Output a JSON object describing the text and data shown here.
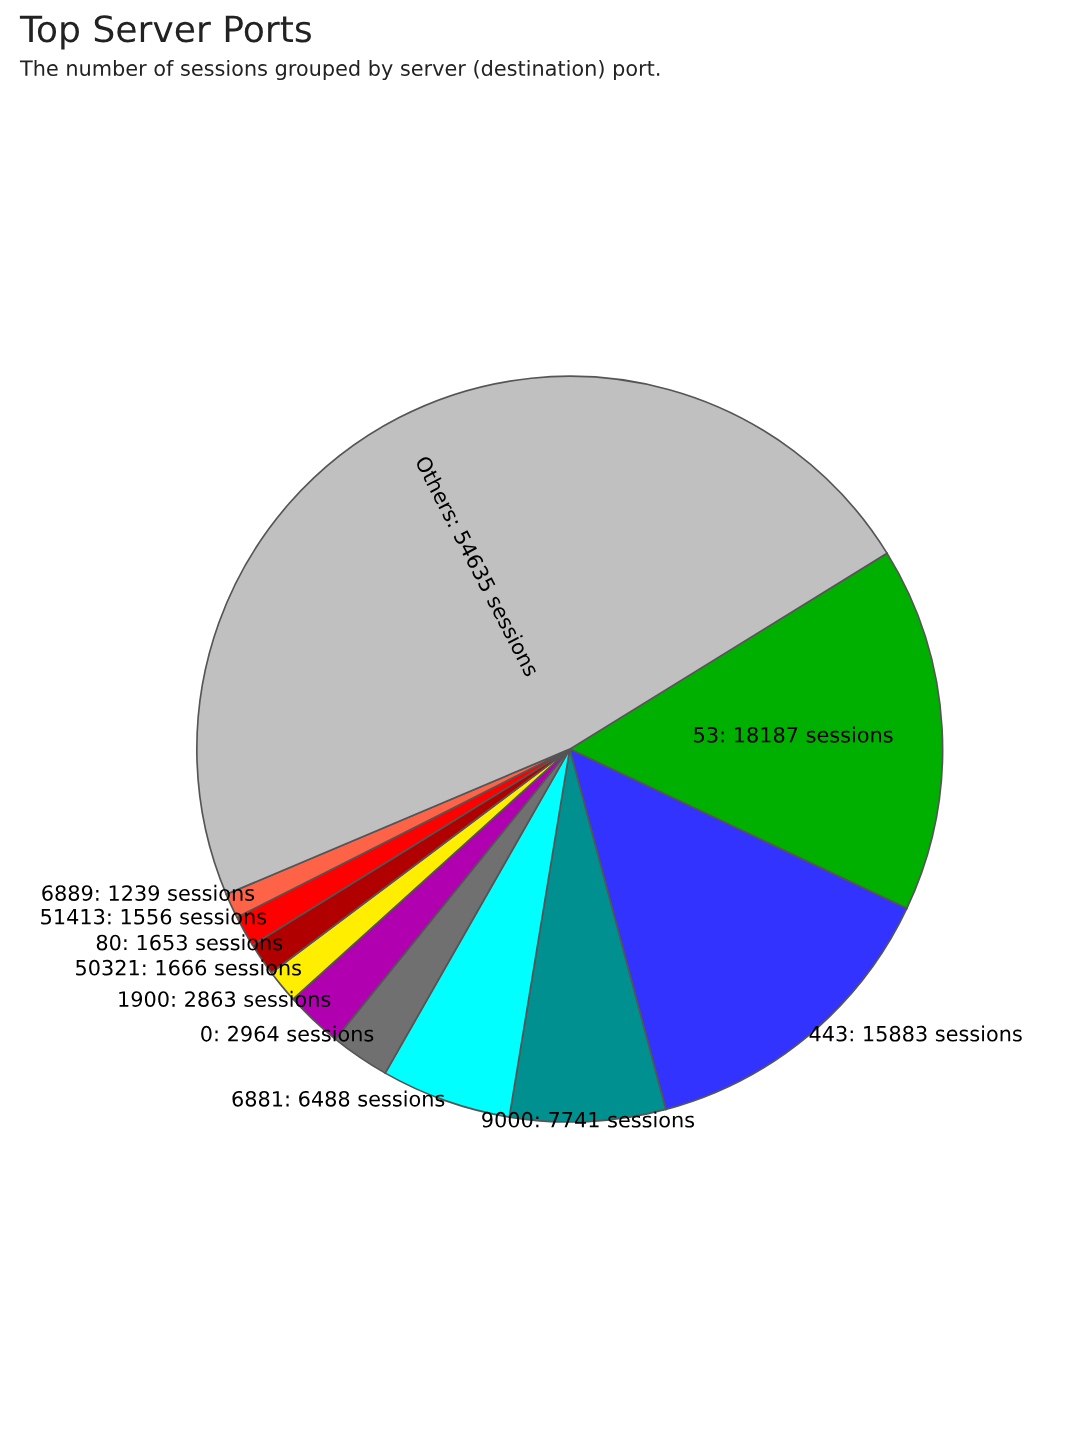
{
  "chart_data": {
    "type": "pie",
    "title": "Top Server Ports",
    "subtitle": "The number of sessions grouped by server (destination) port.",
    "categories": [
      "53: 18187 sessions",
      "443: 15883 sessions",
      "9000: 7741 sessions",
      "6881: 6488 sessions",
      "0: 2964 sessions",
      "1900: 2863 sessions",
      "50321: 1666 sessions",
      "80: 1653 sessions",
      "51413: 1556 sessions",
      "6889: 1239 sessions",
      "Others: 54635 sessions"
    ],
    "values": [
      18187,
      15883,
      7741,
      6488,
      2964,
      2863,
      1666,
      1653,
      1556,
      1239,
      54635
    ],
    "colors": [
      "#00b000",
      "#3333ff",
      "#009090",
      "#00ffff",
      "#707070",
      "#b000b0",
      "#ffee00",
      "#b00000",
      "#ff0000",
      "#ff6347",
      "#c0c0c0"
    ]
  }
}
